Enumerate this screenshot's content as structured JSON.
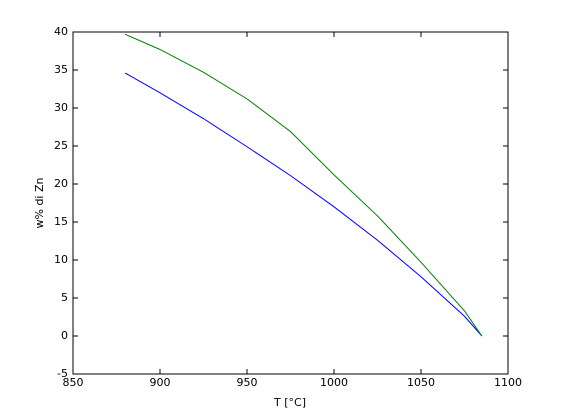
{
  "chart_data": {
    "type": "line",
    "x_label": "T [°C]",
    "y_label": "w% di Zn",
    "x": [
      880,
      900,
      925,
      950,
      975,
      1000,
      1025,
      1050,
      1075,
      1085
    ],
    "series": [
      {
        "color": "#0000ff",
        "values": [
          34.6,
          32.0,
          28.6,
          24.9,
          21.1,
          17.0,
          12.6,
          7.8,
          2.6,
          0
        ]
      },
      {
        "color": "#008000",
        "values": [
          39.7,
          37.7,
          34.7,
          31.2,
          26.9,
          21.2,
          15.8,
          9.7,
          3.3,
          0
        ]
      }
    ],
    "xlim": [
      850,
      1100
    ],
    "xticks": [
      850,
      900,
      950,
      1000,
      1050,
      1100
    ],
    "ylim": [
      -5,
      40
    ],
    "yticks": [
      -5,
      0,
      5,
      10,
      15,
      20,
      25,
      30,
      35,
      40
    ],
    "grid": false
  }
}
